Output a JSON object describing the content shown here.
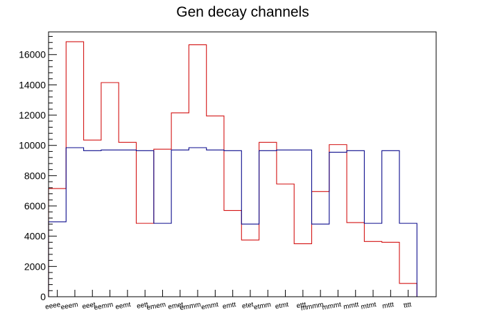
{
  "chart_data": {
    "type": "bar",
    "title": "Gen decay channels",
    "xlabel": "",
    "ylabel": "",
    "ylim": [
      0,
      17500
    ],
    "yticks": [
      0,
      2000,
      4000,
      6000,
      8000,
      10000,
      12000,
      14000,
      16000
    ],
    "grid": false,
    "legend": "none",
    "categories": [
      "eeee",
      "eeem",
      "eeet",
      "eemm",
      "eemt",
      "eett",
      "emem",
      "emet",
      "emmm",
      "emmt",
      "emtt",
      "etet",
      "etmm",
      "etmt",
      "ettt",
      "mmmm",
      "mmmt",
      "mmtt",
      "mtmt",
      "mttt",
      "tttt"
    ],
    "series": [
      {
        "color": "#d31212",
        "values": [
          7150,
          16850,
          10350,
          14150,
          10200,
          4850,
          9750,
          12150,
          16650,
          11950,
          5700,
          3750,
          10200,
          7450,
          3500,
          6950,
          10050,
          4900,
          3650,
          3600,
          880
        ]
      },
      {
        "color": "#0a0a8c",
        "values": [
          4950,
          9850,
          9650,
          9700,
          9700,
          9650,
          4850,
          9700,
          9850,
          9700,
          9650,
          4800,
          9650,
          9700,
          9700,
          4800,
          9550,
          9650,
          4850,
          9650,
          4850
        ]
      }
    ]
  }
}
